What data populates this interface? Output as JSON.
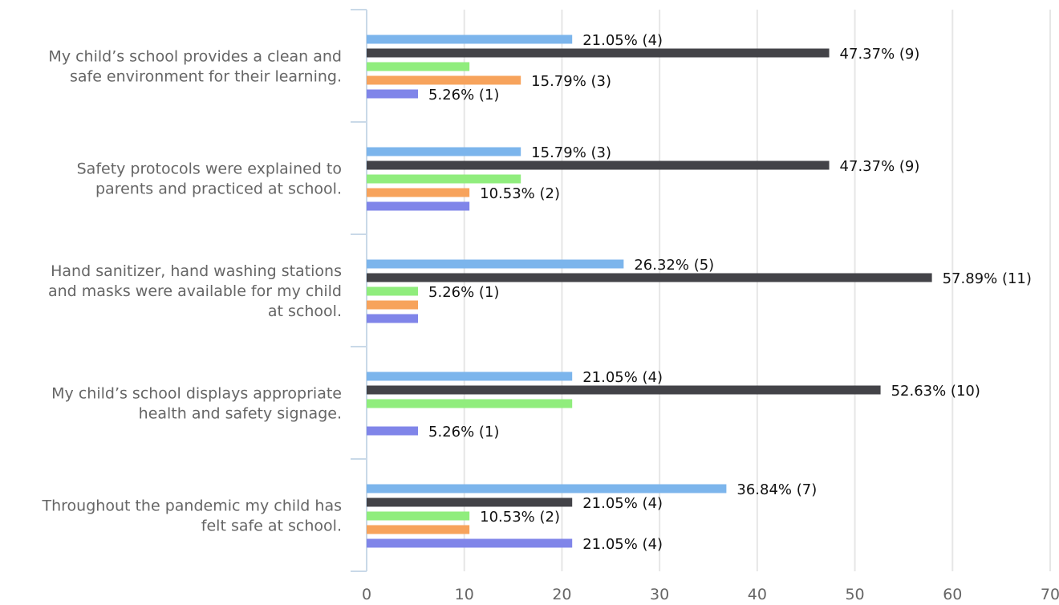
{
  "chart_data": {
    "type": "bar",
    "orientation": "horizontal",
    "title": "",
    "xlabel": "",
    "ylabel": "",
    "xlim": [
      0,
      70
    ],
    "x_ticks": [
      0,
      10,
      20,
      30,
      40,
      50,
      60,
      70
    ],
    "grid": true,
    "legend": "none",
    "categories": [
      {
        "lines": [
          "My child’s school provides a clean and",
          "safe environment for their learning."
        ]
      },
      {
        "lines": [
          "Safety protocols were explained to",
          "parents and practiced at school."
        ]
      },
      {
        "lines": [
          "Hand sanitizer, hand washing stations",
          "and masks were available for my child",
          "at school."
        ]
      },
      {
        "lines": [
          "My child’s school displays appropriate",
          "health and safety signage."
        ]
      },
      {
        "lines": [
          "Throughout the pandemic my child has",
          "felt safe at school."
        ]
      }
    ],
    "series": [
      {
        "color": "#7cb5ec",
        "values": [
          21.05,
          15.79,
          26.32,
          21.05,
          36.84
        ],
        "labels": [
          "21.05% (4)",
          "15.79% (3)",
          "26.32% (5)",
          "21.05% (4)",
          "36.84% (7)"
        ]
      },
      {
        "color": "#434348",
        "values": [
          47.37,
          47.37,
          57.89,
          52.63,
          21.05
        ],
        "labels": [
          "47.37% (9)",
          "47.37% (9)",
          "57.89% (11)",
          "52.63% (10)",
          "21.05% (4)"
        ]
      },
      {
        "color": "#90ed7d",
        "values": [
          10.53,
          15.79,
          5.26,
          21.05,
          10.53
        ],
        "labels": [
          "",
          "",
          "5.26% (1)",
          "",
          "10.53% (2)"
        ]
      },
      {
        "color": "#f7a35c",
        "values": [
          15.79,
          10.53,
          5.26,
          0,
          10.53
        ],
        "labels": [
          "15.79% (3)",
          "10.53% (2)",
          "",
          "",
          ""
        ]
      },
      {
        "color": "#8085e9",
        "values": [
          5.26,
          10.53,
          5.26,
          5.26,
          21.05
        ],
        "labels": [
          "5.26% (1)",
          "",
          "",
          "5.26% (1)",
          "21.05% (4)"
        ]
      }
    ]
  }
}
